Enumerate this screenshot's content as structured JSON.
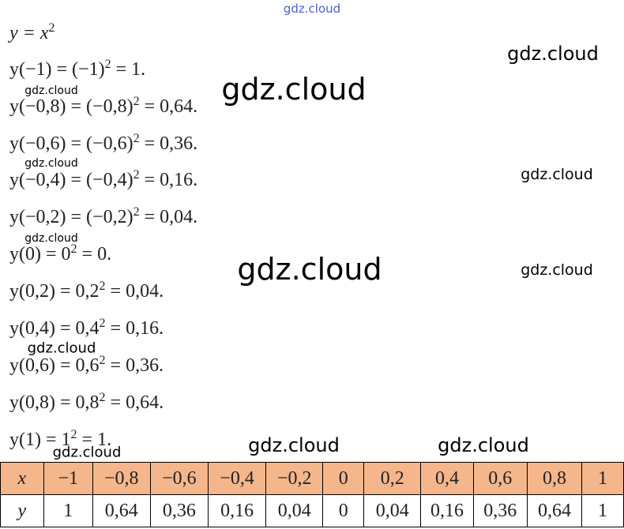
{
  "watermarks": [
    "gdz.cloud",
    "gdz.cloud",
    "gdz.cloud",
    "gdz.cloud",
    "gdz.cloud",
    "gdz.cloud",
    "gdz.cloud",
    "gdz.cloud",
    "gdz.cloud",
    "gdz.cloud",
    "gdz.cloud",
    "gdz.cloud",
    "gdz.cloud"
  ],
  "lines": [
    {
      "base": "y = x",
      "sup": "2"
    },
    {
      "base": "y(−1) = (−1)",
      "sup": "2",
      "rest": " = 1."
    },
    {
      "base": "y(−0,8) = (−0,8)",
      "sup": "2",
      "rest": " = 0,64."
    },
    {
      "base": "y(−0,6) = (−0,6)",
      "sup": "2",
      "rest": " = 0,36."
    },
    {
      "base": "y(−0,4) = (−0,4)",
      "sup": "2",
      "rest": " = 0,16."
    },
    {
      "base": "y(−0,2) = (−0,2)",
      "sup": "2",
      "rest": " = 0,04."
    },
    {
      "base": "y(0) = 0",
      "sup": "2",
      "rest": " = 0."
    },
    {
      "base": "y(0,2) = 0,2",
      "sup": "2",
      "rest": " = 0,04."
    },
    {
      "base": "y(0,4) = 0,4",
      "sup": "2",
      "rest": " = 0,16."
    },
    {
      "base": "y(0,6) = 0,6",
      "sup": "2",
      "rest": " = 0,36."
    },
    {
      "base": "y(0,8) = 0,8",
      "sup": "2",
      "rest": " = 0,64."
    },
    {
      "base": "y(1) = 1",
      "sup": "2",
      "rest": " = 1."
    }
  ],
  "table": {
    "rows": [
      [
        "x",
        "−1",
        "−0,8",
        "−0,6",
        "−0,4",
        "−0,2",
        "0",
        "0,2",
        "0,4",
        "0,6",
        "0,8",
        "1"
      ],
      [
        "y",
        "1",
        "0,64",
        "0,36",
        "0,16",
        "0,04",
        "0",
        "0,04",
        "0,16",
        "0,36",
        "0,64",
        "1"
      ]
    ]
  }
}
